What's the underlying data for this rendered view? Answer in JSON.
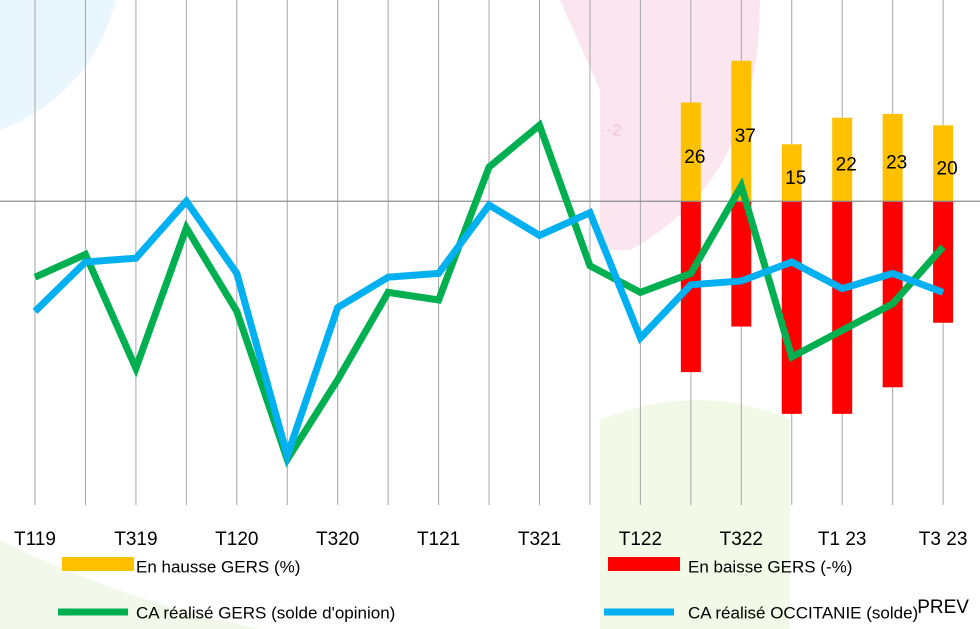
{
  "chart_data": {
    "type": "bar-line",
    "categories": [
      "T119",
      null,
      "T319",
      null,
      "T120",
      null,
      "T320",
      null,
      "T121",
      null,
      "T321",
      null,
      "T122",
      null,
      "T322",
      null,
      "T1 23",
      null,
      "T3 23\nPREV"
    ],
    "ylim": [
      -80,
      53
    ],
    "annotations": [
      "-2"
    ],
    "series": [
      {
        "name": "En hausse GERS (%)",
        "kind": "bar",
        "color": "#FFC000",
        "values": [
          null,
          null,
          null,
          null,
          null,
          null,
          null,
          null,
          null,
          null,
          null,
          null,
          null,
          26,
          37,
          15,
          22,
          23,
          20
        ]
      },
      {
        "name": "En baisse GERS (-%)",
        "kind": "bar",
        "color": "#FF0000",
        "values": [
          null,
          null,
          null,
          null,
          null,
          null,
          null,
          null,
          null,
          null,
          null,
          null,
          null,
          -45,
          -33,
          -56,
          -56,
          -49,
          -32
        ]
      },
      {
        "name": "CA réalisé GERS  (solde d'opinion)",
        "kind": "line",
        "color": "#00B050",
        "values": [
          -20,
          -14,
          -44,
          -7,
          -29,
          -68,
          -47,
          -24,
          -26,
          9,
          20,
          -17,
          -24,
          -19,
          4,
          -41,
          -34,
          -27,
          -12
        ]
      },
      {
        "name": "CA réalisé  OCCITANIE (solde)",
        "kind": "line",
        "color": "#00B0F0",
        "values": [
          -29,
          -16,
          -15,
          0,
          -19,
          -67,
          -28,
          -20,
          -19,
          -1,
          -9,
          -3,
          -36,
          -22,
          -21,
          -16,
          -23,
          -19,
          -24
        ]
      }
    ]
  }
}
